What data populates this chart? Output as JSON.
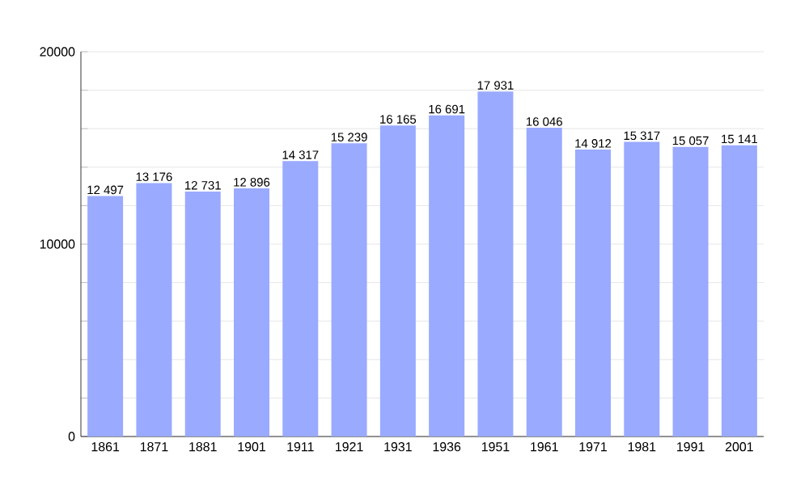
{
  "chart_data": {
    "type": "bar",
    "categories": [
      "1861",
      "1871",
      "1881",
      "1901",
      "1911",
      "1921",
      "1931",
      "1936",
      "1951",
      "1961",
      "1971",
      "1981",
      "1991",
      "2001"
    ],
    "values": [
      12497,
      13176,
      12731,
      12896,
      14317,
      15239,
      16165,
      16691,
      17931,
      16046,
      14912,
      15317,
      15057,
      15141
    ],
    "value_labels": [
      "12 497",
      "13 176",
      "12 731",
      "12 896",
      "14 317",
      "15 239",
      "16 165",
      "16 691",
      "17 931",
      "16 046",
      "14 912",
      "15 317",
      "15 057",
      "15 141"
    ],
    "color": "#99aaff",
    "ylim": [
      0,
      20000
    ],
    "yticks": [
      0,
      {
        "value": 2000,
        "label": null
      },
      {
        "value": 4000,
        "label": null
      },
      {
        "value": 6000,
        "label": null
      },
      {
        "value": 8000,
        "label": null
      },
      10000,
      {
        "value": 12000,
        "label": null
      },
      {
        "value": 14000,
        "label": null
      },
      {
        "value": 16000,
        "label": null
      },
      {
        "value": 18000,
        "label": null
      },
      20000
    ],
    "grid": "y"
  }
}
